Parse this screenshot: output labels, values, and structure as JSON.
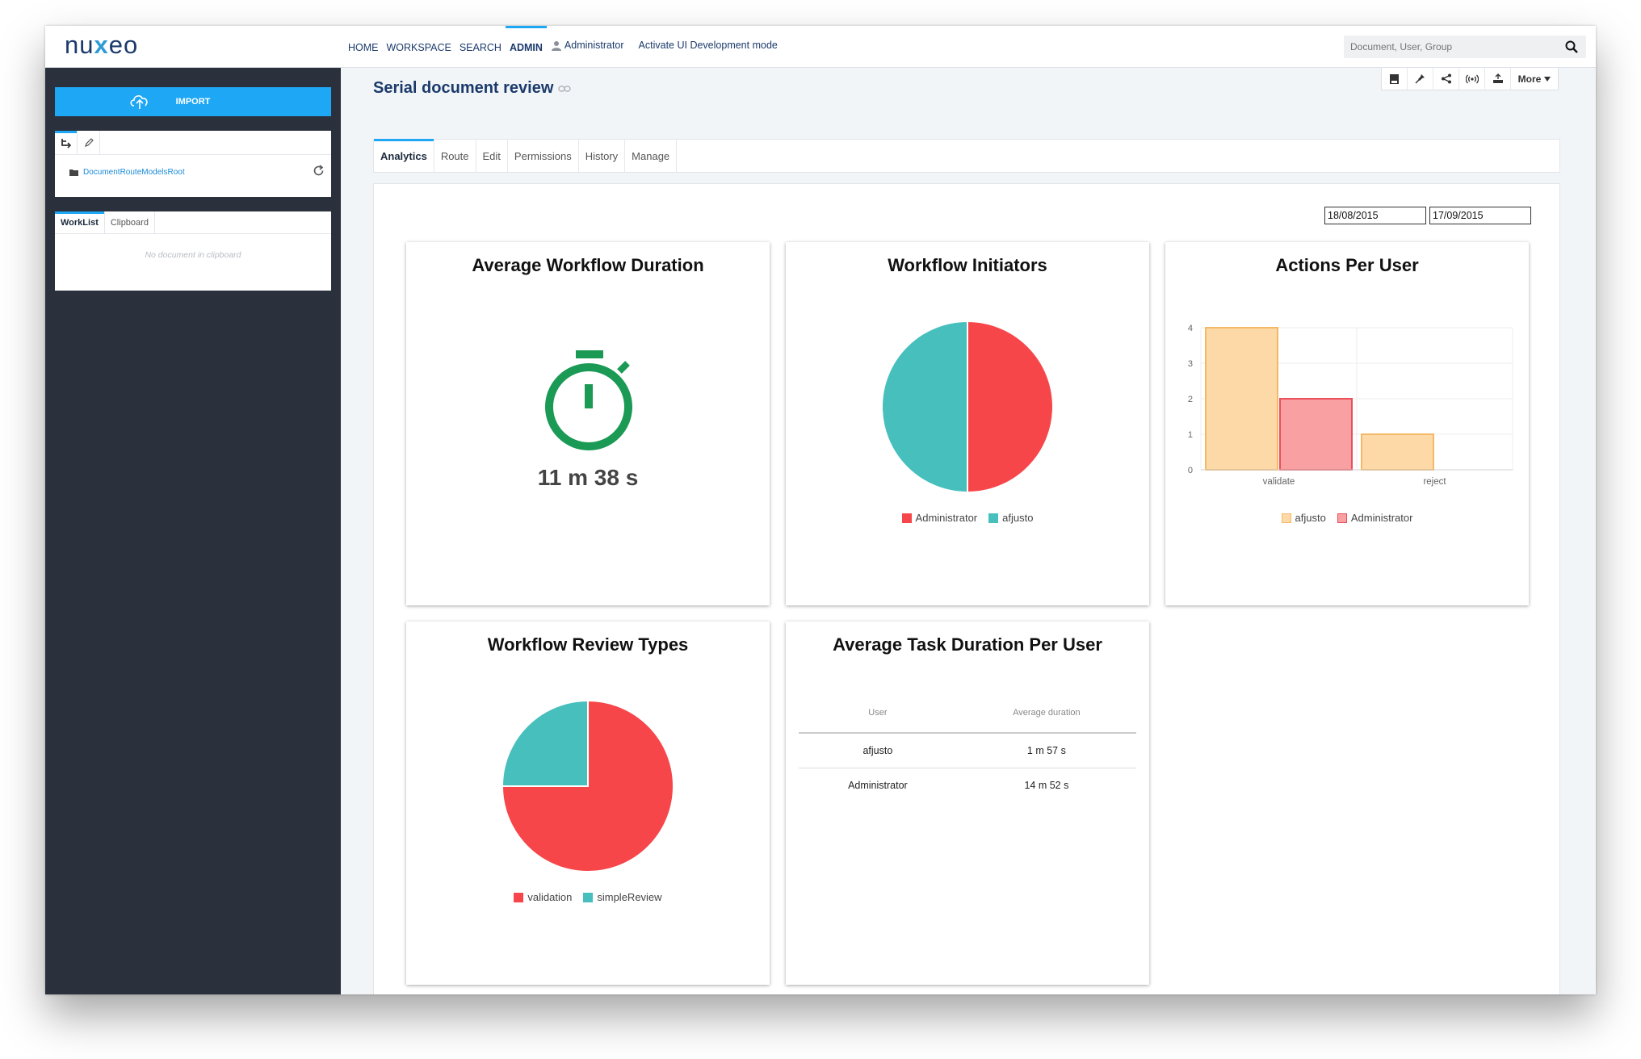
{
  "app": {
    "logo": "nuxeo",
    "nav": [
      "HOME",
      "WORKSPACE",
      "SEARCH",
      "ADMIN"
    ],
    "active_nav": "ADMIN",
    "user": "Administrator",
    "dev_mode_link": "Activate UI Development mode",
    "search_placeholder": "Document, User, Group"
  },
  "sidebar": {
    "import_label": "IMPORT",
    "tree_root": "DocumentRouteModelsRoot",
    "tabs": [
      "WorkList",
      "Clipboard"
    ],
    "empty_text": "No document in clipboard"
  },
  "document": {
    "title": "Serial document review",
    "more_label": "More",
    "tabs": [
      "Analytics",
      "Route",
      "Edit",
      "Permissions",
      "History",
      "Manage"
    ],
    "active_tab": "Analytics"
  },
  "analytics": {
    "start_date": "18/08/2015",
    "end_date": "17/09/2015",
    "cards": {
      "duration_title": "Average Workflow Duration",
      "duration_value": "11 m 38 s",
      "initiators_title": "Workflow Initiators",
      "actions_title": "Actions Per User",
      "review_title": "Workflow Review Types",
      "task_title": "Average Task Duration Per User"
    },
    "task_table": {
      "headers": [
        "User",
        "Average duration"
      ],
      "rows": [
        [
          "afjusto",
          "1 m 57 s"
        ],
        [
          "Administrator",
          "14 m 52 s"
        ]
      ]
    }
  },
  "chart_data": [
    {
      "type": "pie",
      "title": "Workflow Initiators",
      "labels": [
        "Administrator",
        "afjusto"
      ],
      "values": [
        1,
        1
      ],
      "colors": [
        "#f7464a",
        "#46bfbd"
      ]
    },
    {
      "type": "bar",
      "title": "Actions Per User",
      "categories": [
        "validate",
        "reject"
      ],
      "series": [
        {
          "name": "afjusto",
          "values": [
            4,
            1
          ],
          "color": "#fdd9a8",
          "stroke": "#f5b867"
        },
        {
          "name": "Administrator",
          "values": [
            2,
            0
          ],
          "color": "#f9a0a3",
          "stroke": "#e9505a"
        }
      ],
      "ylim": [
        0,
        4
      ],
      "yticks": [
        0,
        1,
        2,
        3,
        4
      ],
      "grid": true,
      "legend": "bottom"
    },
    {
      "type": "pie",
      "title": "Workflow Review Types",
      "labels": [
        "validation",
        "simpleReview"
      ],
      "values": [
        3,
        1
      ],
      "colors": [
        "#f7464a",
        "#46bfbd"
      ]
    }
  ]
}
